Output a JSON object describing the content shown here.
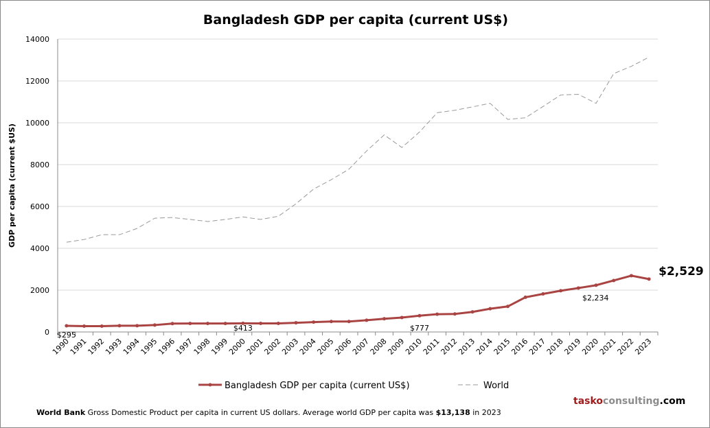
{
  "chart_data": {
    "type": "line",
    "title": "Bangladesh GDP per capita (current US$)",
    "ylabel": "GDP per capita (current $US)",
    "xlabel": "",
    "ylim": [
      0,
      14000
    ],
    "yticks": [
      0,
      2000,
      4000,
      6000,
      8000,
      10000,
      12000,
      14000
    ],
    "grid": true,
    "legend": "bottom",
    "categories": [
      "1990",
      "1991",
      "1992",
      "1993",
      "1994",
      "1995",
      "1996",
      "1997",
      "1998",
      "1999",
      "2000",
      "2001",
      "2002",
      "2003",
      "2004",
      "2005",
      "2006",
      "2007",
      "2008",
      "2009",
      "2010",
      "2011",
      "2012",
      "2013",
      "2014",
      "2015",
      "2016",
      "2017",
      "2018",
      "2019",
      "2020",
      "2021",
      "2022",
      "2023"
    ],
    "series": [
      {
        "name": "Bangladesh GDP per capita (current US$)",
        "color": "#a94442",
        "style": "solid-markers",
        "values": [
          295,
          280,
          280,
          300,
          300,
          330,
          400,
          405,
          405,
          405,
          413,
          410,
          410,
          440,
          470,
          500,
          500,
          560,
          630,
          690,
          777,
          850,
          860,
          960,
          1110,
          1220,
          1660,
          1820,
          1970,
          2100,
          2234,
          2460,
          2690,
          2529
        ]
      },
      {
        "name": "World",
        "color": "#999999",
        "style": "dashed",
        "values": [
          4290,
          4420,
          4650,
          4650,
          4950,
          5440,
          5470,
          5380,
          5280,
          5380,
          5500,
          5380,
          5530,
          6130,
          6830,
          7280,
          7780,
          8650,
          9420,
          8820,
          9560,
          10480,
          10600,
          10760,
          10930,
          10160,
          10240,
          10780,
          11330,
          11360,
          10930,
          12350,
          12700,
          13138
        ]
      }
    ],
    "annotations": [
      {
        "label": "$295",
        "category": "1990"
      },
      {
        "label": "$413",
        "category": "2000"
      },
      {
        "label": "$777",
        "category": "2010"
      },
      {
        "label": "$2,234",
        "category": "2020"
      },
      {
        "label": "$2,529",
        "category": "2023",
        "emphasis": true
      }
    ]
  },
  "footer": {
    "source": "World Bank",
    "text": " Gross Domestic Product per capita in current US dollars.  Average world GDP per capita was ",
    "value": "$13,138",
    "tail": " in 2023"
  },
  "brand": {
    "part1": "tasko",
    "part2": "consulting",
    "part3": ".com",
    "color1": "#a01c1c",
    "color2": "#8c8c8c"
  }
}
